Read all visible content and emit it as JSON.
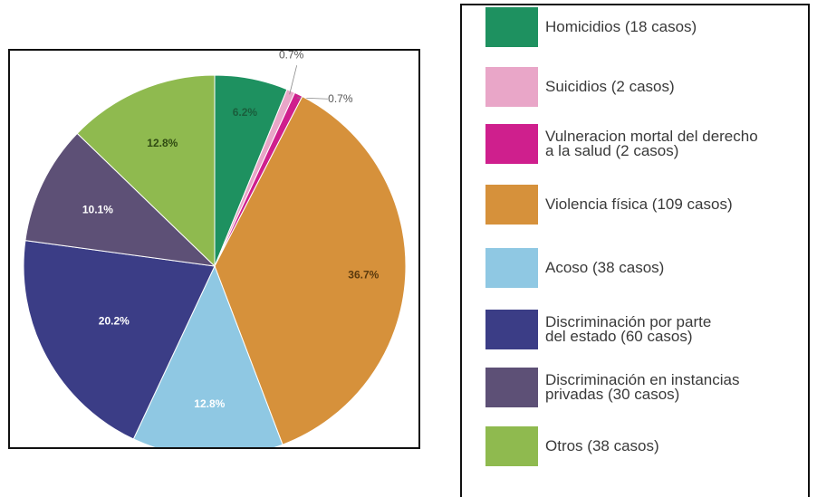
{
  "chart_data": {
    "type": "pie",
    "slices": [
      {
        "label": "Homicidios (18 casos)",
        "value": 6.2,
        "display": "6.2%",
        "color": "#1e9160",
        "label_color": "#1a5e3c"
      },
      {
        "label": "Suicidios (2 casos)",
        "value": 0.7,
        "display": "0.7%",
        "color": "#e9a6c8",
        "label_color": "#666666"
      },
      {
        "label": "Vulneracion mortal del derecho a la salud (2 casos)",
        "value": 0.7,
        "display": "0.7%",
        "color": "#cf1f8d",
        "label_color": "#666666"
      },
      {
        "label": "Violencia física (109 casos)",
        "value": 36.7,
        "display": "36.7%",
        "color": "#d6913b",
        "label_color": "#5b3a0e"
      },
      {
        "label": "Acoso (38 casos)",
        "value": 12.8,
        "display": "12.8%",
        "color": "#8fc8e3",
        "label_color": "#ffffff"
      },
      {
        "label": "Discriminación por parte del estado (60 casos)",
        "value": 20.2,
        "display": "20.2%",
        "color": "#3b3d86",
        "label_color": "#ffffff"
      },
      {
        "label": "Discriminación en instancias privadas (30 casos)",
        "value": 10.1,
        "display": "10.1%",
        "color": "#5d5076",
        "label_color": "#ffffff"
      },
      {
        "label": "Otros (38 casos)",
        "value": 12.8,
        "display": "12.8%",
        "color": "#8fba4f",
        "label_color": "#2f4a12"
      }
    ]
  },
  "legend": {
    "items": [
      {
        "label": "Homicidios (18 casos)",
        "color": "#1e9160"
      },
      {
        "label": "Suicidios (2 casos)",
        "color": "#e9a6c8"
      },
      {
        "label": "Vulneracion mortal del derecho\na la salud (2 casos)",
        "color": "#cf1f8d"
      },
      {
        "label": "Violencia física (109 casos)",
        "color": "#d6913b"
      },
      {
        "label": "Acoso (38 casos)",
        "color": "#8fc8e3"
      },
      {
        "label": "Discriminación por parte\ndel estado (60 casos)",
        "color": "#3b3d86"
      },
      {
        "label": "Discriminación en instancias\nprivadas (30 casos)",
        "color": "#5d5076"
      },
      {
        "label": "Otros (38 casos)",
        "color": "#8fba4f"
      }
    ]
  }
}
